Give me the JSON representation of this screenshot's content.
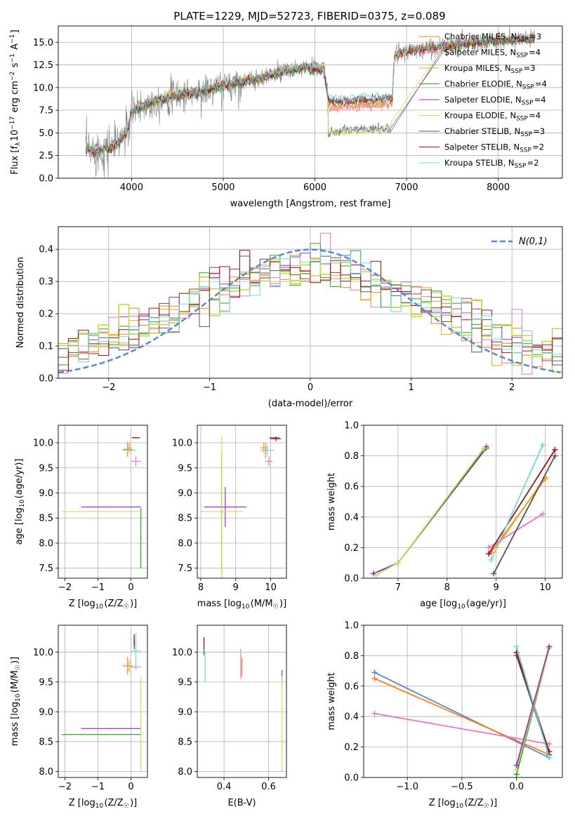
{
  "page_title": "PLATE=1229, MJD=52723, FIBERID=0375, z=0.089",
  "colors": {
    "chabrier_miles": "#ff7f0e",
    "salpeter_miles": "#e377c2",
    "kroupa_miles": "#e6a817",
    "chabrier_elodie": "#2ca02c",
    "salpeter_elodie": "#9b30c0",
    "kroupa_elodie": "#c6e05a",
    "chabrier_stelib": "#555555",
    "salpeter_stelib": "#a01010",
    "kroupa_stelib": "#6fd6e0",
    "observed": "#808080",
    "gaussian": "#5b86d6",
    "grid": "#b0b0b0"
  },
  "chart_data": [
    {
      "id": "spectrum",
      "type": "line",
      "title": "PLATE=1229, MJD=52723, FIBERID=0375, z=0.089",
      "xlabel": "wavelength [Angstrom, rest frame]",
      "ylabel": "Flux [f_λ10^-17 erg cm^-2 s^-1 A^-1]",
      "xlim": [
        3200,
        8700
      ],
      "ylim": [
        0,
        16.8
      ],
      "xticks": [
        4000,
        5000,
        6000,
        7000,
        8000
      ],
      "yticks": [
        "0.0",
        "2.5",
        "5.0",
        "7.5",
        "10.0",
        "12.5",
        "15.0"
      ],
      "legend_position": "top-right",
      "legend": [
        "Chabrier MILES, N_SSP=3",
        "Salpeter MILES, N_SSP=4",
        "Kroupa MILES, N_SSP=3",
        "Chabrier ELODIE, N_SSP=4",
        "Salpeter ELODIE, N_SSP=4",
        "Kroupa ELODIE, N_SSP=4",
        "Chabrier STELIB, N_SSP=3",
        "Salpeter STELIB, N_SSP=2",
        "Kroupa STELIB, N_SSP=2"
      ],
      "continuum": {
        "x": [
          3500,
          3600,
          3800,
          3950,
          4000,
          4200,
          4500,
          4800,
          5000,
          5300,
          5600,
          5900,
          6100,
          6150,
          6500,
          6840,
          6870,
          7000,
          7400,
          7800,
          8200,
          8400
        ],
        "y": [
          3.2,
          3.0,
          3.5,
          5.0,
          7.3,
          8.3,
          9.2,
          9.6,
          10.2,
          10.8,
          11.6,
          12.2,
          12.0,
          8.5,
          8.3,
          8.6,
          13.5,
          14.0,
          14.5,
          15.0,
          15.3,
          15.4
        ]
      }
    },
    {
      "id": "residuals",
      "type": "step",
      "xlabel": "(data-model)/error",
      "ylabel": "Normed distribution",
      "xlim": [
        -2.5,
        2.5
      ],
      "ylim": [
        0,
        0.47
      ],
      "xticks": [
        -2,
        -1,
        0,
        1,
        2
      ],
      "yticks": [
        "0.0",
        "0.1",
        "0.2",
        "0.3",
        "0.4"
      ],
      "legend_position": "top-right",
      "legend": [
        "N(0,1)"
      ],
      "gaussian": {
        "mu": 0,
        "sigma": 1
      }
    },
    {
      "id": "age-vs-Z",
      "type": "errorbar",
      "xlabel": "Z [log10(Z/Z☉)]",
      "ylabel": "age  [log10(age/yr)]",
      "xlim": [
        -2.2,
        0.5
      ],
      "ylim": [
        7.3,
        10.35
      ],
      "xticks": [
        -2,
        -1,
        0
      ],
      "yticks": [
        "7.5",
        "8.0",
        "8.5",
        "9.0",
        "9.5",
        "10.0"
      ],
      "points": [
        {
          "c": "chabrier_miles",
          "x": -0.1,
          "y": 9.87,
          "xe": 0.15,
          "ye": 0.15
        },
        {
          "c": "salpeter_miles",
          "x": 0.15,
          "y": 9.63,
          "xe": 0.15,
          "ye": 0.1
        },
        {
          "c": "kroupa_miles",
          "x": -0.05,
          "y": 9.9,
          "xe": 0.05,
          "ye": 0.1
        },
        {
          "c": "chabrier_elodie",
          "x": 0.3,
          "y": 8.1,
          "xe": 0.02,
          "ye": 0.6
        },
        {
          "c": "salpeter_elodie",
          "x": -0.6,
          "y": 8.72,
          "xe": 0.9,
          "ye": 0.01
        },
        {
          "c": "kroupa_elodie",
          "x": -0.9,
          "y": 8.63,
          "xe": 1.2,
          "ye": 0.01
        },
        {
          "c": "chabrier_stelib",
          "x": 0.15,
          "y": 10.1,
          "xe": 0.12,
          "ye": 0.01
        },
        {
          "c": "salpeter_stelib",
          "x": 0.15,
          "y": 10.1,
          "xe": 0.12,
          "ye": 0.01
        },
        {
          "c": "kroupa_stelib",
          "x": -0.05,
          "y": 9.85,
          "xe": 0.2,
          "ye": 0.01
        }
      ]
    },
    {
      "id": "age-vs-mass",
      "type": "errorbar",
      "xlabel": "mass [log10(M/M☉)]",
      "ylabel": "",
      "xlim": [
        7.9,
        10.45
      ],
      "ylim": [
        7.3,
        10.35
      ],
      "xticks": [
        8,
        9,
        10
      ],
      "yticks": [
        "7.5",
        "8.0",
        "8.5",
        "9.0",
        "9.5",
        "10.0"
      ],
      "points": [
        {
          "c": "chabrier_miles",
          "x": 9.85,
          "y": 9.85,
          "xe": 0.1,
          "ye": 0.15
        },
        {
          "c": "salpeter_miles",
          "x": 9.95,
          "y": 9.63,
          "xe": 0.1,
          "ye": 0.1
        },
        {
          "c": "kroupa_miles",
          "x": 9.8,
          "y": 9.9,
          "xe": 0.1,
          "ye": 0.1
        },
        {
          "c": "chabrier_elodie",
          "x": 8.6,
          "y": 8.62,
          "xe": 0.03,
          "ye": 1.2
        },
        {
          "c": "salpeter_elodie",
          "x": 8.7,
          "y": 8.72,
          "xe": 0.6,
          "ye": 0.4
        },
        {
          "c": "kroupa_elodie",
          "x": 8.6,
          "y": 8.63,
          "xe": 0.6,
          "ye": 1.5
        },
        {
          "c": "chabrier_stelib",
          "x": 10.1,
          "y": 10.1,
          "xe": 0.15,
          "ye": 0.01
        },
        {
          "c": "salpeter_stelib",
          "x": 10.15,
          "y": 10.08,
          "xe": 0.15,
          "ye": 0.05
        },
        {
          "c": "kroupa_stelib",
          "x": 9.9,
          "y": 9.85,
          "xe": 0.2,
          "ye": 0.1
        }
      ]
    },
    {
      "id": "weight-vs-age",
      "type": "line",
      "xlabel": "age  [log10(age/yr)]",
      "ylabel": "mass weight",
      "xlim": [
        6.3,
        10.35
      ],
      "ylim": [
        0,
        1.0
      ],
      "xticks": [
        7,
        8,
        9,
        10
      ],
      "yticks": [
        "0.0",
        "0.2",
        "0.4",
        "0.6",
        "0.8",
        "1.0"
      ],
      "series": [
        {
          "c": "chabrier_elodie",
          "x": [
            6.5,
            7.0,
            8.8
          ],
          "y": [
            0.03,
            0.1,
            0.85
          ]
        },
        {
          "c": "salpeter_elodie",
          "x": [
            6.5,
            7.0,
            8.8
          ],
          "y": [
            0.03,
            0.1,
            0.86
          ]
        },
        {
          "c": "kroupa_elodie",
          "x": [
            6.55,
            7.0,
            8.75
          ],
          "y": [
            0.02,
            0.1,
            0.85
          ]
        },
        {
          "c": "chabrier_miles",
          "x": [
            8.9,
            10.0
          ],
          "y": [
            0.17,
            0.65
          ]
        },
        {
          "c": "kroupa_miles",
          "x": [
            9.0,
            10.0
          ],
          "y": [
            0.2,
            0.66
          ]
        },
        {
          "c": "salpeter_miles",
          "x": [
            8.85,
            9.95
          ],
          "y": [
            0.2,
            0.42
          ]
        },
        {
          "c": "chabrier_stelib",
          "x": [
            8.95,
            10.2
          ],
          "y": [
            0.03,
            0.8
          ]
        },
        {
          "c": "salpeter_stelib",
          "x": [
            8.85,
            10.2
          ],
          "y": [
            0.16,
            0.84
          ]
        },
        {
          "c": "kroupa_stelib",
          "x": [
            8.9,
            9.95
          ],
          "y": [
            0.12,
            0.87
          ]
        }
      ]
    },
    {
      "id": "mass-vs-Z",
      "type": "errorbar",
      "xlabel": "Z [log10(Z/Z☉)]",
      "ylabel": "mass [log10(M/M☉)]",
      "xlim": [
        -2.2,
        0.5
      ],
      "ylim": [
        7.9,
        10.45
      ],
      "xticks": [
        -2,
        -1,
        0
      ],
      "yticks": [
        "8.0",
        "8.5",
        "9.0",
        "9.5",
        "10.0"
      ],
      "points": [
        {
          "c": "chabrier_miles",
          "x": -0.1,
          "y": 9.77,
          "xe": 0.15,
          "ye": 0.15
        },
        {
          "c": "salpeter_miles",
          "x": 0.15,
          "y": 9.75,
          "xe": 0.15,
          "ye": 0.05
        },
        {
          "c": "kroupa_miles",
          "x": -0.05,
          "y": 9.77,
          "xe": 0.05,
          "ye": 0.1
        },
        {
          "c": "chabrier_elodie",
          "x": -0.9,
          "y": 8.62,
          "xe": 1.2,
          "ye": 0.01
        },
        {
          "c": "salpeter_elodie",
          "x": -0.6,
          "y": 8.72,
          "xe": 0.9,
          "ye": 0.01
        },
        {
          "c": "kroupa_elodie",
          "x": 0.3,
          "y": 8.8,
          "xe": 0.02,
          "ye": 0.8
        },
        {
          "c": "chabrier_stelib",
          "x": 0.1,
          "y": 10.15,
          "xe": 0.02,
          "ye": 0.1
        },
        {
          "c": "salpeter_stelib",
          "x": 0.1,
          "y": 10.2,
          "xe": 0.02,
          "ye": 0.1
        },
        {
          "c": "kroupa_stelib",
          "x": 0.15,
          "y": 10.02,
          "xe": 0.15,
          "ye": 0.3
        }
      ]
    },
    {
      "id": "mass-vs-ebv",
      "type": "errorbar",
      "xlabel": "E(B-V)",
      "ylabel": "",
      "xlim": [
        0.28,
        0.68
      ],
      "ylim": [
        7.9,
        10.45
      ],
      "xticks": [
        "0.4",
        "0.6"
      ],
      "yticks": [
        "8.0",
        "8.5",
        "9.0",
        "9.5",
        "10.0"
      ],
      "points": [
        {
          "c": "chabrier_stelib",
          "x": 0.31,
          "y": 10.1,
          "xe": 0.0,
          "ye": 0.15
        },
        {
          "c": "salpeter_stelib",
          "x": 0.31,
          "y": 10.15,
          "xe": 0.0,
          "ye": 0.1
        },
        {
          "c": "kroupa_stelib",
          "x": 0.315,
          "y": 9.75,
          "xe": 0.0,
          "ye": 0.25
        },
        {
          "c": "salpeter_miles",
          "x": 0.475,
          "y": 9.8,
          "xe": 0.0,
          "ye": 0.25
        },
        {
          "c": "chabrier_miles",
          "x": 0.48,
          "y": 9.75,
          "xe": 0.0,
          "ye": 0.15
        },
        {
          "c": "salpeter_elodie",
          "x": 0.66,
          "y": 9.6,
          "xe": 0.0,
          "ye": 0.1
        },
        {
          "c": "kroupa_elodie",
          "x": 0.66,
          "y": 8.8,
          "xe": 0.0,
          "ye": 0.8
        }
      ]
    },
    {
      "id": "weight-vs-Z",
      "type": "line",
      "xlabel": "Z [log10(Z/Z☉)]",
      "ylabel": "mass weight",
      "xlim": [
        -1.4,
        0.42
      ],
      "ylim": [
        0,
        1.0
      ],
      "xticks": [
        "−1.0",
        "−0.5",
        "0.0"
      ],
      "xtick_values": [
        -1.0,
        -0.5,
        0.0
      ],
      "yticks": [
        "0.0",
        "0.2",
        "0.4",
        "0.6",
        "0.8",
        "1.0"
      ],
      "series": [
        {
          "c": "gaussian",
          "x": [
            -1.3,
            0.3
          ],
          "y": [
            0.69,
            0.13
          ]
        },
        {
          "c": "chabrier_miles",
          "x": [
            -1.3,
            0.3
          ],
          "y": [
            0.65,
            0.15
          ]
        },
        {
          "c": "salpeter_miles",
          "x": [
            -1.3,
            0.3
          ],
          "y": [
            0.42,
            0.22
          ]
        },
        {
          "c": "chabrier_stelib",
          "x": [
            0.0,
            0.3
          ],
          "y": [
            0.8,
            0.15
          ]
        },
        {
          "c": "salpeter_stelib",
          "x": [
            0.0,
            0.3
          ],
          "y": [
            0.82,
            0.17
          ]
        },
        {
          "c": "kroupa_stelib",
          "x": [
            0.0,
            0.3
          ],
          "y": [
            0.86,
            0.13
          ]
        },
        {
          "c": "chabrier_elodie",
          "x": [
            0.0,
            0.3
          ],
          "y": [
            0.02,
            0.85
          ]
        },
        {
          "c": "kroupa_elodie",
          "x": [
            0.0,
            0.3
          ],
          "y": [
            0.05,
            0.85
          ]
        },
        {
          "c": "salpeter_elodie",
          "x": [
            0.0,
            0.3
          ],
          "y": [
            0.08,
            0.86
          ]
        }
      ]
    }
  ]
}
